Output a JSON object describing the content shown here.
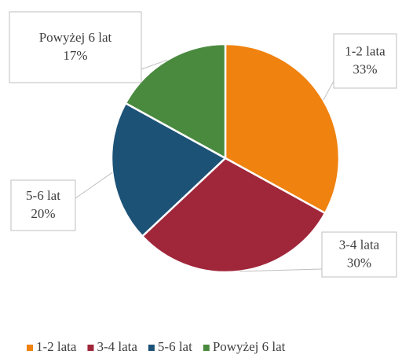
{
  "chart_data": {
    "type": "pie",
    "categories": [
      "1-2 lata",
      "3-4 lata",
      "5-6 lat",
      "Powyżej 6 lat"
    ],
    "values": [
      33,
      30,
      20,
      17
    ],
    "value_labels": [
      "33%",
      "30%",
      "20%",
      "17%"
    ],
    "colors": [
      "#f0820f",
      "#a0263a",
      "#1d5277",
      "#4a8a3f"
    ],
    "legend": "bottom"
  }
}
